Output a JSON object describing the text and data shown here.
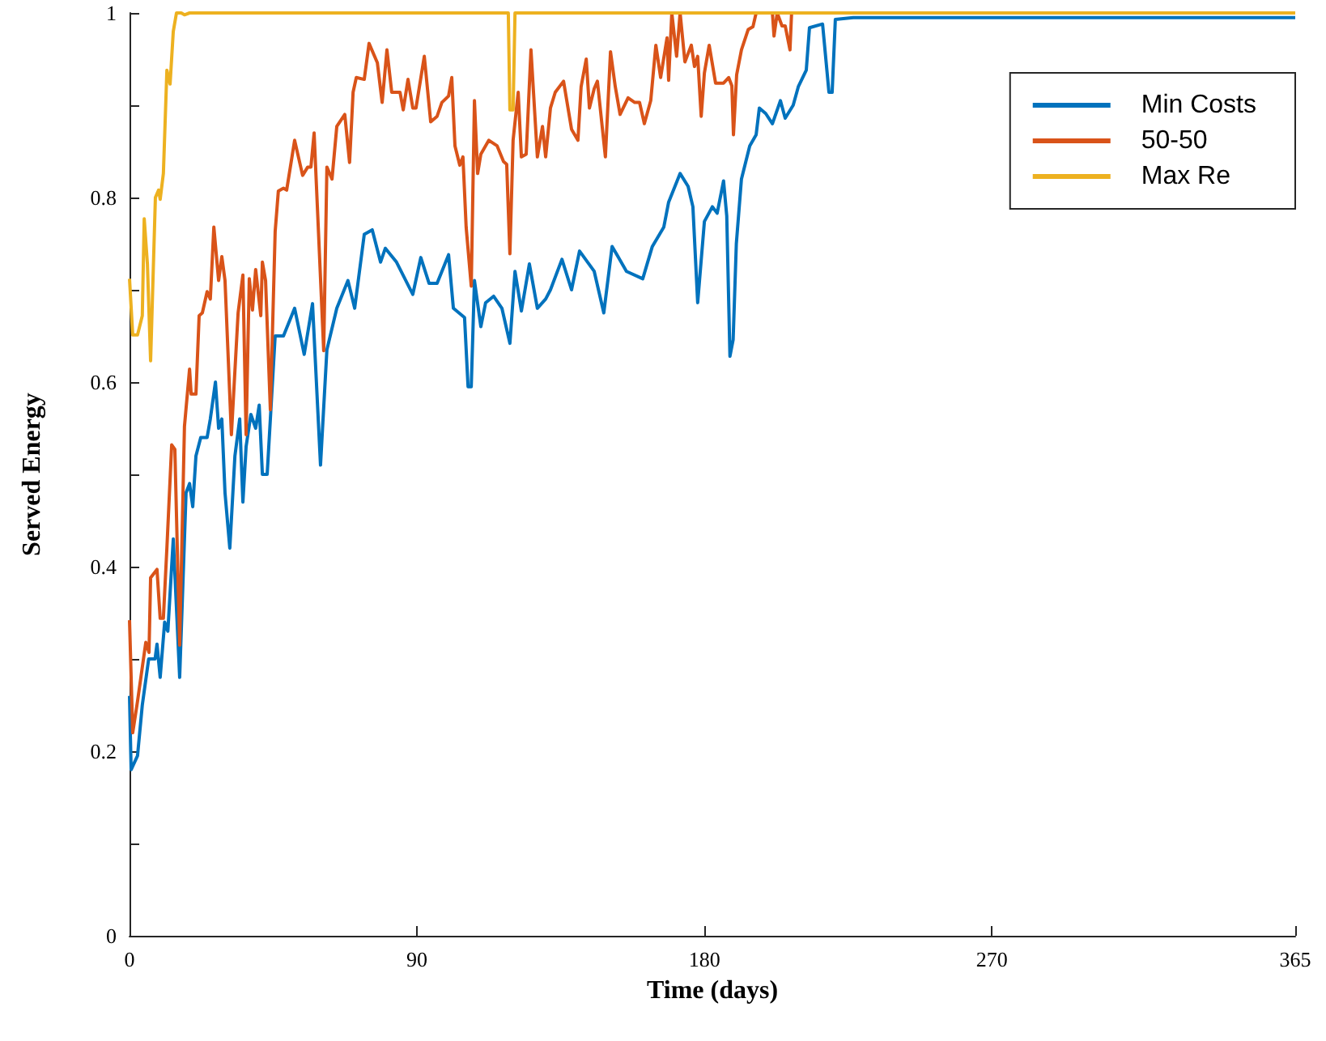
{
  "chart_data": {
    "type": "line",
    "xlabel": "Time (days)",
    "ylabel": "Served Energy",
    "xlim": [
      0,
      365
    ],
    "xticks": [
      0,
      90,
      180,
      270,
      365
    ],
    "ylim": [
      0,
      1
    ],
    "yticks": [
      0,
      {
        "value": 0.1,
        "label": null
      },
      0.2,
      {
        "value": 0.3,
        "label": null
      },
      0.4,
      {
        "value": 0.5,
        "label": null
      },
      0.6,
      {
        "value": 0.7,
        "label": null
      },
      0.8,
      {
        "value": 0.9,
        "label": null
      },
      1
    ],
    "grid": false,
    "legend": "top right",
    "marker": "none",
    "series": [
      {
        "name": "Min Costs",
        "color": "#0072bd",
        "x": [
          0,
          0.5,
          2.5,
          4,
          6,
          8,
          8.6,
          9.6,
          11,
          12,
          13.7,
          15.7,
          17.7,
          18.8,
          19.8,
          20.8,
          22.3,
          24.3,
          25.3,
          26.9,
          27.9,
          28.9,
          29.9,
          31.4,
          33,
          34.5,
          35.5,
          36.5,
          38,
          39.5,
          40.6,
          41.6,
          43.1,
          45.6,
          48.2,
          51.7,
          54.7,
          57.3,
          59.8,
          61.8,
          64.9,
          68.4,
          70.5,
          73.5,
          76,
          78.6,
          80.1,
          83.6,
          88.7,
          91.2,
          93.8,
          96.3,
          99.9,
          101.4,
          104.9,
          106,
          107,
          108,
          110,
          111.5,
          114,
          116.6,
          119.1,
          120.7,
          122.7,
          125.2,
          127.7,
          130.3,
          131.8,
          135.4,
          138.4,
          140.9,
          145.5,
          148.5,
          151.1,
          155.6,
          160.7,
          163.7,
          167.3,
          168.8,
          172.4,
          174.9,
          176.4,
          177.9,
          180,
          182.5,
          184,
          186,
          187,
          188,
          189,
          190,
          191.6,
          194.2,
          196.2,
          197.2,
          199.2,
          201.3,
          203.8,
          205.3,
          207.8,
          209.4,
          211.9,
          212.9,
          217,
          219,
          220,
          221,
          226.6,
          365
        ],
        "values": [
          0.26,
          0.18,
          0.195,
          0.25,
          0.3,
          0.3,
          0.316,
          0.28,
          0.34,
          0.33,
          0.43,
          0.28,
          0.48,
          0.49,
          0.465,
          0.52,
          0.54,
          0.54,
          0.56,
          0.6,
          0.55,
          0.56,
          0.48,
          0.42,
          0.52,
          0.56,
          0.47,
          0.53,
          0.565,
          0.55,
          0.575,
          0.5,
          0.5,
          0.65,
          0.65,
          0.68,
          0.63,
          0.685,
          0.51,
          0.635,
          0.68,
          0.71,
          0.68,
          0.76,
          0.765,
          0.73,
          0.745,
          0.73,
          0.695,
          0.735,
          0.707,
          0.707,
          0.738,
          0.68,
          0.67,
          0.595,
          0.595,
          0.71,
          0.66,
          0.686,
          0.693,
          0.68,
          0.642,
          0.72,
          0.677,
          0.728,
          0.68,
          0.69,
          0.7,
          0.733,
          0.7,
          0.742,
          0.72,
          0.675,
          0.747,
          0.72,
          0.712,
          0.747,
          0.768,
          0.795,
          0.826,
          0.812,
          0.79,
          0.686,
          0.774,
          0.79,
          0.783,
          0.818,
          0.78,
          0.628,
          0.646,
          0.75,
          0.82,
          0.856,
          0.868,
          0.897,
          0.891,
          0.88,
          0.905,
          0.886,
          0.9,
          0.92,
          0.938,
          0.984,
          0.988,
          0.914,
          0.914,
          0.993,
          0.995,
          0.995
        ]
      },
      {
        "name": "50-50",
        "color": "#d95319",
        "x": [
          0,
          1,
          2.5,
          5.1,
          6.1,
          6.6,
          8.6,
          9.6,
          10.6,
          11.7,
          13.2,
          14.2,
          15.7,
          17.2,
          18.8,
          19.3,
          20.8,
          21.8,
          22.8,
          24.3,
          25.3,
          26.4,
          27.9,
          28.9,
          29.9,
          31.9,
          34,
          35.5,
          36.5,
          37.5,
          38.5,
          39.5,
          41.1,
          41.6,
          42.6,
          44.1,
          45.6,
          46.6,
          48.2,
          49.2,
          51.7,
          54.2,
          55.8,
          56.8,
          57.8,
          60.8,
          61.8,
          63.4,
          64.9,
          67.4,
          68.9,
          70,
          71,
          73.5,
          75,
          77.6,
          79.1,
          80.6,
          82.1,
          84.7,
          85.7,
          87.2,
          88.7,
          89.7,
          92.3,
          94.3,
          96.3,
          97.8,
          99.9,
          100.9,
          101.9,
          103.4,
          104.4,
          105.4,
          107,
          108,
          109,
          110,
          112.5,
          115.1,
          117.1,
          118.1,
          119.1,
          120.1,
          121.7,
          122.7,
          124.2,
          125.7,
          127.7,
          129.3,
          130.3,
          131.8,
          133.3,
          135.9,
          138.4,
          140.4,
          141.4,
          143,
          144,
          145.5,
          146.5,
          149,
          150.6,
          152.1,
          153.6,
          156.1,
          158.2,
          159.7,
          161.2,
          163.2,
          164.8,
          166.3,
          168.3,
          168.8,
          169.8,
          171.3,
          172.4,
          173.9,
          175.9,
          176.9,
          177.9,
          179,
          180,
          181.5,
          183.5,
          186,
          187.6,
          188.6,
          189.1,
          190.1,
          191.6,
          193.7,
          195.2,
          196.2,
          199.2,
          201.3,
          201.8,
          202.8,
          204.3,
          205.3,
          206.8,
          207.3,
          365
        ],
        "values": [
          0.342,
          0.22,
          0.254,
          0.318,
          0.307,
          0.388,
          0.397,
          0.344,
          0.344,
          0.42,
          0.532,
          0.527,
          0.315,
          0.552,
          0.614,
          0.587,
          0.587,
          0.672,
          0.675,
          0.698,
          0.69,
          0.768,
          0.71,
          0.736,
          0.71,
          0.543,
          0.675,
          0.716,
          0.543,
          0.712,
          0.678,
          0.722,
          0.672,
          0.73,
          0.71,
          0.57,
          0.763,
          0.807,
          0.81,
          0.808,
          0.862,
          0.824,
          0.833,
          0.833,
          0.87,
          0.634,
          0.833,
          0.82,
          0.877,
          0.89,
          0.838,
          0.914,
          0.93,
          0.928,
          0.967,
          0.946,
          0.903,
          0.96,
          0.914,
          0.914,
          0.895,
          0.928,
          0.897,
          0.897,
          0.953,
          0.882,
          0.888,
          0.903,
          0.91,
          0.93,
          0.856,
          0.835,
          0.844,
          0.768,
          0.704,
          0.905,
          0.826,
          0.847,
          0.862,
          0.856,
          0.839,
          0.836,
          0.739,
          0.862,
          0.914,
          0.844,
          0.847,
          0.96,
          0.844,
          0.877,
          0.844,
          0.897,
          0.914,
          0.926,
          0.874,
          0.862,
          0.92,
          0.95,
          0.897,
          0.918,
          0.926,
          0.844,
          0.958,
          0.92,
          0.89,
          0.908,
          0.903,
          0.903,
          0.88,
          0.905,
          0.965,
          0.93,
          0.973,
          0.927,
          1,
          0.953,
          1,
          0.947,
          0.965,
          0.942,
          0.953,
          0.888,
          0.935,
          0.965,
          0.924,
          0.924,
          0.93,
          0.921,
          0.868,
          0.933,
          0.96,
          0.982,
          0.985,
          1,
          1,
          1,
          0.975,
          1,
          0.986,
          0.986,
          0.96,
          1,
          1
        ]
      },
      {
        "name": "Max Re",
        "color": "#edb120",
        "x": [
          0,
          1,
          2.5,
          4,
          4.6,
          5.6,
          6.6,
          8.1,
          9.1,
          9.6,
          10.6,
          11.7,
          12.7,
          13.7,
          14.7,
          16.2,
          17.2,
          18.8,
          118.6,
          119.1,
          120.1,
          120.7,
          365
        ],
        "values": [
          0.712,
          0.651,
          0.651,
          0.672,
          0.777,
          0.728,
          0.623,
          0.8,
          0.808,
          0.798,
          0.826,
          0.938,
          0.923,
          0.98,
          1,
          1,
          0.998,
          1,
          1,
          0.895,
          0.895,
          1,
          1
        ]
      }
    ]
  }
}
